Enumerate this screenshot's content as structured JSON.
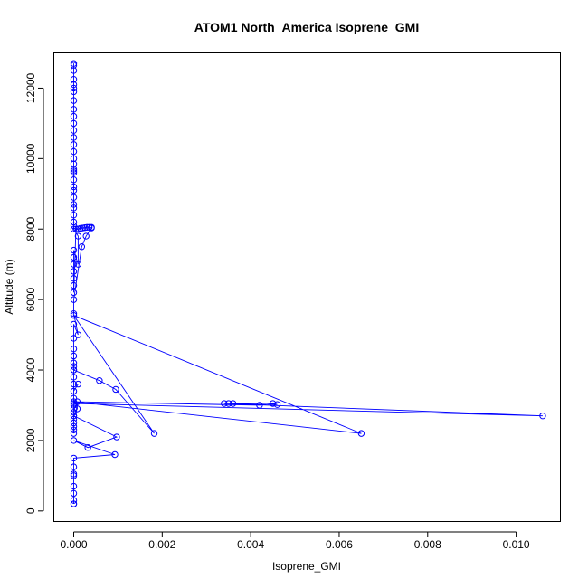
{
  "chart_data": {
    "type": "line",
    "title": "ATOM1 North_America Isoprene_GMI",
    "xlabel": "Isoprene_GMI",
    "ylabel": "Altitude (m)",
    "xlim": [
      -0.00045,
      0.011
    ],
    "ylim": [
      -300,
      13000
    ],
    "xticks": [
      0.0,
      0.002,
      0.004,
      0.006,
      0.008,
      0.01
    ],
    "xtick_labels": [
      "0.000",
      "0.002",
      "0.004",
      "0.006",
      "0.008",
      "0.010"
    ],
    "yticks": [
      0,
      2000,
      4000,
      6000,
      8000,
      10000,
      12000
    ],
    "ytick_labels": [
      "0",
      "2000",
      "4000",
      "6000",
      "8000",
      "10000",
      "12000"
    ],
    "grid": false,
    "marker": "open-circle",
    "color": "#0000ff",
    "series": [
      {
        "x": [
          0,
          0,
          0,
          0,
          0,
          0,
          0,
          0,
          0,
          0,
          0,
          0,
          0,
          0,
          0,
          0,
          0,
          0,
          0,
          0,
          0,
          0,
          0,
          0,
          0,
          0,
          0,
          0,
          0,
          0,
          0.0001,
          0.0001,
          0,
          0,
          0,
          0,
          0,
          0,
          0,
          5e-05,
          0.0001,
          0.00015,
          0.0002,
          0.00025,
          0.0003,
          0.00035,
          0.0004,
          0.0004,
          0.00028,
          0.00018,
          0,
          0,
          0.0001,
          0,
          0,
          0,
          0,
          0,
          0,
          0,
          0,
          0.0001,
          0,
          0,
          0,
          0,
          0,
          0,
          0,
          0,
          0,
          0,
          0,
          0,
          0,
          0.00058,
          0.00095,
          0.00182,
          0,
          0.0065,
          0,
          0.0042,
          0.0045,
          0.0046,
          0.0036,
          0.0035,
          0.0034,
          0.0106,
          0,
          8e-05,
          8e-05,
          0,
          0.00097,
          0.00032,
          0,
          0.00093,
          0,
          0,
          0,
          0,
          0,
          0,
          0,
          0,
          0
        ],
        "y": [
          12700,
          12650,
          12500,
          12250,
          12100,
          12000,
          11900,
          11650,
          11400,
          11200,
          11000,
          10800,
          10600,
          10400,
          10200,
          10000,
          9850,
          9700,
          9650,
          9600,
          9400,
          9200,
          9100,
          8900,
          8700,
          8600,
          8400,
          8200,
          8100,
          8000,
          7800,
          7000,
          7400,
          7200,
          7000,
          6800,
          6600,
          6400,
          6200,
          8000,
          8000,
          8020,
          8030,
          8040,
          8050,
          8050,
          8050,
          8030,
          7800,
          7500,
          6000,
          5600,
          5000,
          5300,
          4900,
          4600,
          4400,
          4200,
          4000,
          3800,
          3600,
          3600,
          3400,
          3200,
          3000,
          2900,
          2800,
          2700,
          2600,
          2500,
          2400,
          2300,
          2200,
          4100,
          4000,
          3700,
          3450,
          2200,
          5550,
          2200,
          3100,
          3000,
          3050,
          3020,
          3050,
          3050,
          3050,
          2700,
          3050,
          3100,
          2900,
          2700,
          2100,
          1800,
          2000,
          1600,
          1500,
          1250,
          1050,
          1000,
          700,
          500,
          300,
          200,
          200
        ]
      }
    ]
  }
}
